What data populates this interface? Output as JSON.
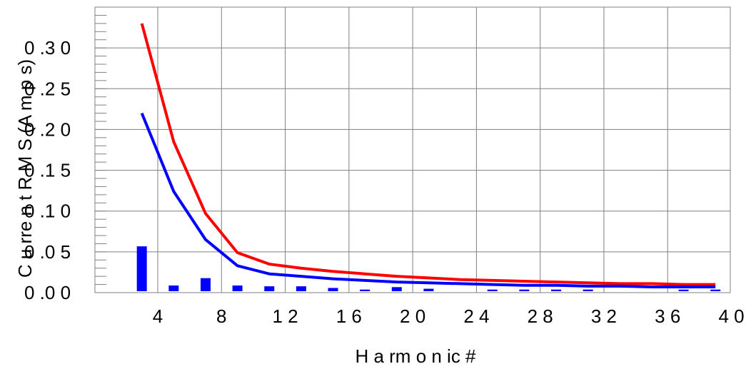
{
  "chart_data": {
    "type": "bar",
    "xlabel": "H a rm o n ic  #",
    "ylabel": "C u rre n t  R M S  (A m p s)",
    "xlim": [
      0,
      40
    ],
    "ylim": [
      0,
      0.35
    ],
    "x_ticks": [
      4,
      8,
      12,
      16,
      20,
      24,
      28,
      32,
      36,
      40
    ],
    "y_ticks": [
      0.0,
      0.05,
      0.1,
      0.15,
      0.2,
      0.25,
      0.3
    ],
    "x_tick_labels": [
      "4",
      "8",
      "1 2",
      "1 6",
      "2 0",
      "2 4",
      "2 8",
      "3 2",
      "3 6",
      "4 0"
    ],
    "y_tick_labels": [
      "0 .0 0",
      "0 .0 5",
      "0 .1 0",
      "0 .1 5",
      "0 .2 0",
      "0 .2 5",
      "0 .3 0"
    ],
    "grid": true,
    "colors": {
      "bars": "#0000ff",
      "upper_limit": "#ff0000",
      "lower_limit": "#0000ff",
      "grid": "#808080"
    },
    "bars": {
      "x": [
        3,
        5,
        7,
        9,
        11,
        13,
        15,
        17,
        19,
        21,
        25,
        27,
        29,
        31,
        37,
        39
      ],
      "values": [
        0.055,
        0.007,
        0.016,
        0.007,
        0.006,
        0.006,
        0.004,
        0.002,
        0.005,
        0.003,
        0.002,
        0.002,
        0.002,
        0.002,
        0.002,
        0.002
      ]
    },
    "series": [
      {
        "x": [
          3,
          5,
          7,
          9,
          11,
          13,
          15,
          17,
          19,
          21,
          23,
          25,
          27,
          29,
          31,
          33,
          35,
          37,
          39
        ],
        "values": [
          0.33,
          0.185,
          0.097,
          0.049,
          0.035,
          0.03,
          0.026,
          0.023,
          0.02,
          0.018,
          0.016,
          0.015,
          0.014,
          0.013,
          0.012,
          0.011,
          0.011,
          0.01,
          0.01
        ],
        "color": "#ff0000"
      },
      {
        "x": [
          3,
          5,
          7,
          9,
          11,
          13,
          15,
          17,
          19,
          21,
          23,
          25,
          27,
          29,
          31,
          33,
          35,
          37,
          39
        ],
        "values": [
          0.22,
          0.124,
          0.065,
          0.033,
          0.023,
          0.02,
          0.017,
          0.015,
          0.013,
          0.012,
          0.011,
          0.01,
          0.009,
          0.009,
          0.008,
          0.008,
          0.007,
          0.007,
          0.007
        ],
        "color": "#0000ff"
      }
    ]
  }
}
